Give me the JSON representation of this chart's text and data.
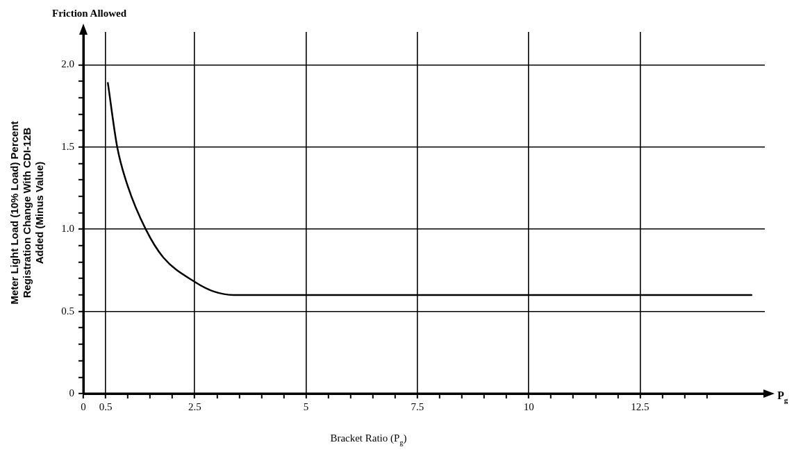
{
  "chart_data": {
    "type": "line",
    "xlabel": "Bracket Ratio (P$_{g}$)",
    "ylabel": "Meter Light Load (10% Load) Percent Registration Change With CDI-12B Added (Minus Value)",
    "annotations": [
      "Friction Allowed",
      "P$_{g}$"
    ],
    "x": [
      0.55,
      0.76,
      1.0,
      1.4,
      1.79,
      2.5,
      2.94,
      3.37,
      5,
      7.5,
      10,
      12.5,
      15
    ],
    "series": [
      {
        "color": "#000000",
        "values": [
          1.89,
          1.5,
          1.26,
          1.0,
          0.83,
          0.68,
          0.62,
          0.6,
          0.6,
          0.6,
          0.6,
          0.6,
          0.6
        ]
      }
    ],
    "xlim": [
      0,
      15.3
    ],
    "xticks": [
      0,
      0.5,
      {
        "value": 1,
        "label": null
      },
      {
        "value": 1.5,
        "label": null
      },
      {
        "value": 2,
        "label": null
      },
      2.5,
      {
        "value": 3,
        "label": null
      },
      {
        "value": 3.5,
        "label": null
      },
      {
        "value": 4,
        "label": null
      },
      {
        "value": 4.5,
        "label": null
      },
      5,
      {
        "value": 5.5,
        "label": null
      },
      {
        "value": 6,
        "label": null
      },
      {
        "value": 6.5,
        "label": null
      },
      {
        "value": 7,
        "label": null
      },
      7.5,
      {
        "value": 8,
        "label": null
      },
      {
        "value": 8.5,
        "label": null
      },
      {
        "value": 9,
        "label": null
      },
      {
        "value": 9.5,
        "label": null
      },
      10,
      {
        "value": 10.5,
        "label": null
      },
      {
        "value": 11,
        "label": null
      },
      {
        "value": 11.5,
        "label": null
      },
      {
        "value": 12,
        "label": null
      },
      12.5,
      {
        "value": 13,
        "label": null
      },
      {
        "value": 13.5,
        "label": null
      },
      {
        "value": 14,
        "label": null
      }
    ],
    "ylim": [
      0,
      2.2
    ],
    "yticks": [
      0,
      {
        "value": 0.1,
        "label": null
      },
      {
        "value": 0.2,
        "label": null
      },
      {
        "value": 0.3,
        "label": null
      },
      {
        "value": 0.4,
        "label": null
      },
      {
        "value": 0.5,
        "label": "0.5"
      },
      {
        "value": 0.6,
        "label": null
      },
      {
        "value": 0.7,
        "label": null
      },
      {
        "value": 0.8,
        "label": null
      },
      {
        "value": 0.9,
        "label": null
      },
      {
        "value": 1,
        "label": "1.0"
      },
      {
        "value": 1.1,
        "label": null
      },
      {
        "value": 1.2,
        "label": null
      },
      {
        "value": 1.3,
        "label": null
      },
      {
        "value": 1.4,
        "label": null
      },
      {
        "value": 1.5,
        "label": "1.5"
      },
      {
        "value": 1.6,
        "label": null
      },
      {
        "value": 1.7,
        "label": null
      },
      {
        "value": 1.8,
        "label": null
      },
      {
        "value": 1.9,
        "label": null
      },
      {
        "value": 2,
        "label": "2.0"
      }
    ],
    "grid": true,
    "marker": "none",
    "line_style": "solid"
  }
}
